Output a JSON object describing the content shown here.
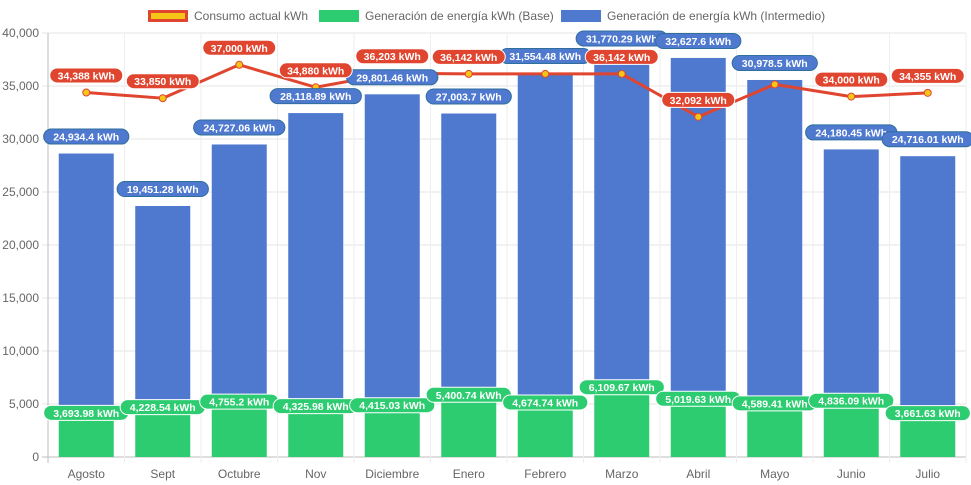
{
  "chart_data": {
    "type": "bar",
    "title": "",
    "xlabel": "",
    "ylabel": "",
    "ylim": [
      0,
      40000
    ],
    "yticks": [
      "0",
      "5,000",
      "10,000",
      "15,000",
      "20,000",
      "25,000",
      "30,000",
      "35,000",
      "40,000"
    ],
    "categories": [
      "Agosto",
      "Sept",
      "Octubre",
      "Nov",
      "Diciembre",
      "Enero",
      "Febrero",
      "Marzo",
      "Abril",
      "Mayo",
      "Junio",
      "Julio"
    ],
    "series": [
      {
        "name": "Consumo actual kWh",
        "kind": "line",
        "color": "#e0452f",
        "point_color": "#f5c518",
        "values": [
          34388,
          33850,
          37000,
          34880,
          36203,
          36142,
          36142,
          36142,
          32092,
          35150,
          34000,
          34355
        ],
        "labels": [
          "34,388 kWh",
          "33,850 kWh",
          "37,000 kWh",
          "34,880 kWh",
          "36,203 kWh",
          "36,142 kWh",
          "",
          "36,142 kWh",
          "32,092 kWh",
          "",
          "34,000 kWh",
          "34,355 kWh"
        ]
      },
      {
        "name": "Generación de energía kWh (Base)",
        "kind": "bar",
        "color": "#2ecc71",
        "values": [
          3693.98,
          4228.54,
          4755.2,
          4325.98,
          4415.03,
          5400.74,
          4674.74,
          6109.67,
          5019.63,
          4589.41,
          4836.09,
          3661.63
        ],
        "labels": [
          "3,693.98 kWh",
          "4,228.54 kWh",
          "4,755.2 kWh",
          "4,325.98 kWh",
          "4,415.03 kWh",
          "5,400.74 kWh",
          "4,674.74 kWh",
          "6,109.67 kWh",
          "5,019.63 kWh",
          "4,589.41 kWh",
          "4,836.09 kWh",
          "3,661.63 kWh"
        ]
      },
      {
        "name": "Generación de energía kWh (Intermedio)",
        "kind": "bar",
        "color": "#4e79cf",
        "values": [
          24934.4,
          19451.28,
          24727.06,
          28118.89,
          29801.46,
          27003.7,
          31554.48,
          31770.29,
          32627.6,
          30978.5,
          24180.45,
          24716.01
        ],
        "labels": [
          "24,934.4 kWh",
          "19,451.28 kWh",
          "24,727.06 kWh",
          "28,118.89 kWh",
          "29,801.46 kWh",
          "27,003.7 kWh",
          "31,554.48 kWh",
          "31,770.29 kWh",
          "32,627.6 kWh",
          "30,978.5 kWh",
          "24,180.45 kWh",
          "24,716.01 kWh"
        ]
      }
    ],
    "legend_position": "top",
    "grid": true
  }
}
